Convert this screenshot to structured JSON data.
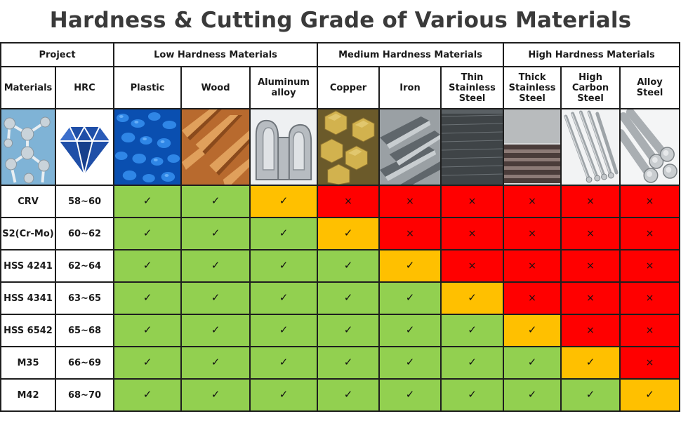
{
  "title": "Hardness & Cutting Grade of Various Materials",
  "headers": {
    "project": "Project",
    "groups": [
      "Low Hardness Materials",
      "Medium Hardness Materials",
      "High Hardness Materials"
    ],
    "materials": "Materials",
    "hrc": "HRC",
    "columns": [
      "Plastic",
      "Wood",
      "Aluminum\nalloy",
      "Copper",
      "Iron",
      "Thin\nStainless\nSteel",
      "Thick\nStainless\nSteel",
      "High\nCarbon\nSteel",
      "Alloy\nSteel"
    ]
  },
  "marks": {
    "ok": "✓",
    "no": "×"
  },
  "colors": {
    "suitable": "#92d050",
    "limited": "#ffc000",
    "unsuitable": "#ff0000"
  },
  "rows": [
    {
      "material": "CRV",
      "hrc": "58~60",
      "grades": [
        "g",
        "g",
        "o",
        "r",
        "r",
        "r",
        "r",
        "r",
        "r"
      ]
    },
    {
      "material": "S2(Cr-Mo)",
      "hrc": "60~62",
      "grades": [
        "g",
        "g",
        "g",
        "o",
        "r",
        "r",
        "r",
        "r",
        "r"
      ]
    },
    {
      "material": "HSS 4241",
      "hrc": "62~64",
      "grades": [
        "g",
        "g",
        "g",
        "g",
        "o",
        "r",
        "r",
        "r",
        "r"
      ]
    },
    {
      "material": "HSS 4341",
      "hrc": "63~65",
      "grades": [
        "g",
        "g",
        "g",
        "g",
        "g",
        "o",
        "r",
        "r",
        "r"
      ]
    },
    {
      "material": "HSS 6542",
      "hrc": "65~68",
      "grades": [
        "g",
        "g",
        "g",
        "g",
        "g",
        "g",
        "o",
        "r",
        "r"
      ]
    },
    {
      "material": "M35",
      "hrc": "66~69",
      "grades": [
        "g",
        "g",
        "g",
        "g",
        "g",
        "g",
        "g",
        "o",
        "r"
      ]
    },
    {
      "material": "M42",
      "hrc": "68~70",
      "grades": [
        "g",
        "g",
        "g",
        "g",
        "g",
        "g",
        "g",
        "g",
        "o"
      ]
    }
  ]
}
